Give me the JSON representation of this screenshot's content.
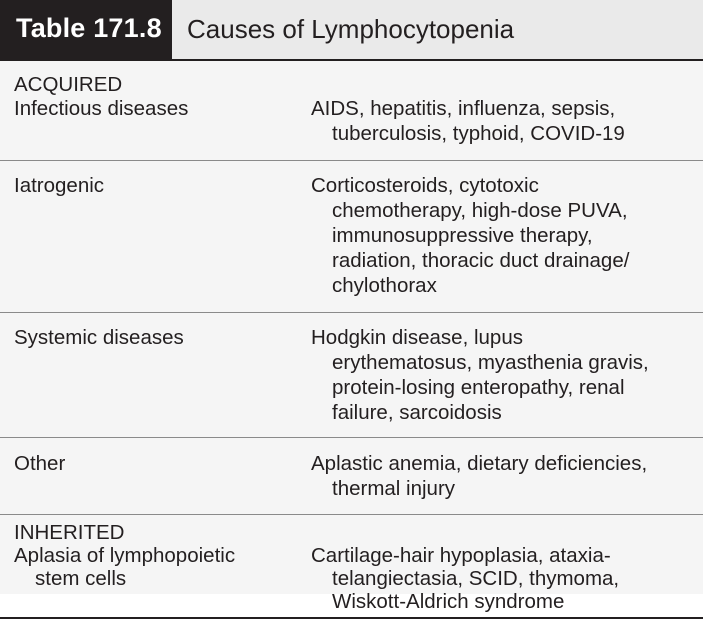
{
  "table": {
    "number": "Table 171.8",
    "title": "Causes of Lymphocytopenia"
  },
  "sections": [
    {
      "heading": "ACQUIRED",
      "rows": [
        {
          "cause": [
            "Infectious diseases"
          ],
          "examples": [
            "AIDS, hepatitis, influenza, sepsis,",
            "tuberculosis, typhoid, COVID-19"
          ]
        },
        {
          "cause": [
            "Iatrogenic"
          ],
          "examples": [
            "Corticosteroids, cytotoxic",
            "chemotherapy, high-dose PUVA,",
            "immunosuppressive therapy,",
            "radiation, thoracic duct drainage/",
            "chylothorax"
          ]
        },
        {
          "cause": [
            "Systemic diseases"
          ],
          "examples": [
            "Hodgkin disease, lupus",
            "erythematosus, myasthenia gravis,",
            "protein-losing enteropathy, renal",
            "failure, sarcoidosis"
          ]
        },
        {
          "cause": [
            "Other"
          ],
          "examples": [
            "Aplastic anemia, dietary deficiencies,",
            "thermal injury"
          ]
        }
      ]
    },
    {
      "heading": "INHERITED",
      "rows": [
        {
          "cause": [
            "Aplasia of lymphopoietic",
            "stem cells"
          ],
          "examples": [
            "Cartilage-hair hypoplasia, ataxia-",
            "telangiectasia, SCID, thymoma,",
            "Wiskott-Aldrich syndrome"
          ]
        }
      ]
    }
  ]
}
